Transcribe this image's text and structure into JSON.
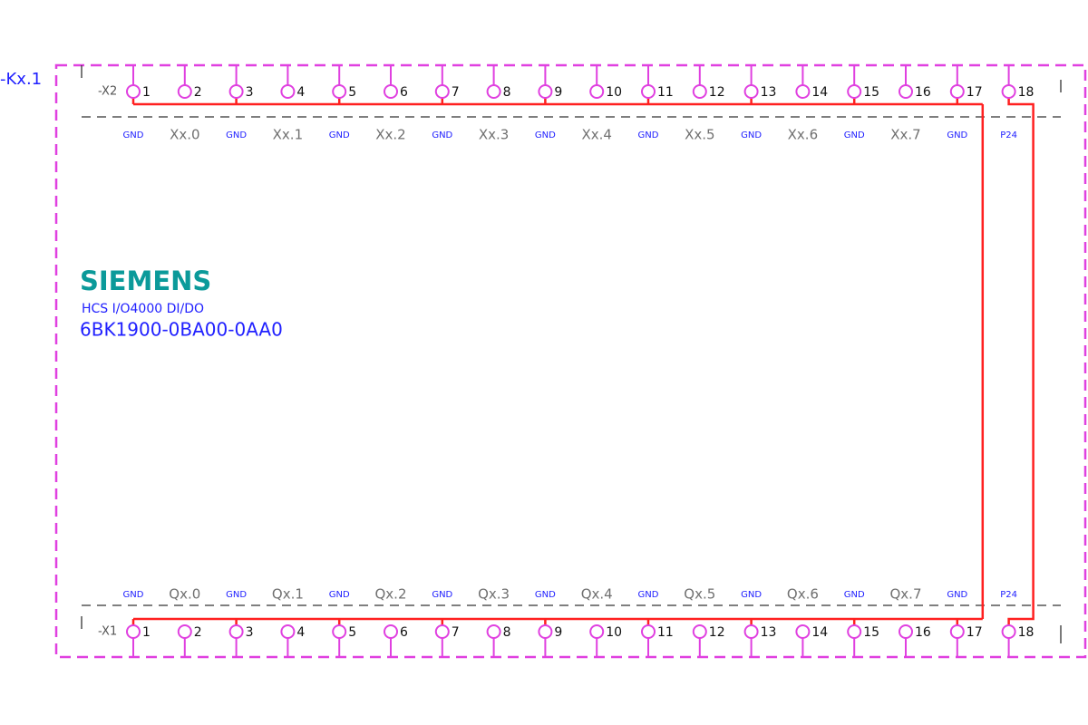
{
  "device": {
    "label": "-Kx.1",
    "brand": "SIEMENS",
    "product": "HCS I/O4000 DI/DO",
    "order_number": "6BK1900-0BA00-0AA0"
  },
  "connectors": [
    {
      "label": "-X2",
      "terminals": [
        "1",
        "2",
        "3",
        "4",
        "5",
        "6",
        "7",
        "8",
        "9",
        "10",
        "11",
        "12",
        "13",
        "14",
        "15",
        "16",
        "17",
        "18"
      ],
      "signals": [
        "GND",
        "Xx.0",
        "GND",
        "Xx.1",
        "GND",
        "Xx.2",
        "GND",
        "Xx.3",
        "GND",
        "Xx.4",
        "GND",
        "Xx.5",
        "GND",
        "Xx.6",
        "GND",
        "Xx.7",
        "GND",
        "P24"
      ]
    },
    {
      "label": "-X1",
      "terminals": [
        "1",
        "2",
        "3",
        "4",
        "5",
        "6",
        "7",
        "8",
        "9",
        "10",
        "11",
        "12",
        "13",
        "14",
        "15",
        "16",
        "17",
        "18"
      ],
      "signals": [
        "GND",
        "Qx.0",
        "GND",
        "Qx.1",
        "GND",
        "Qx.2",
        "GND",
        "Qx.3",
        "GND",
        "Qx.4",
        "GND",
        "Qx.5",
        "GND",
        "Qx.6",
        "GND",
        "Qx.7",
        "GND",
        "P24"
      ]
    }
  ]
}
